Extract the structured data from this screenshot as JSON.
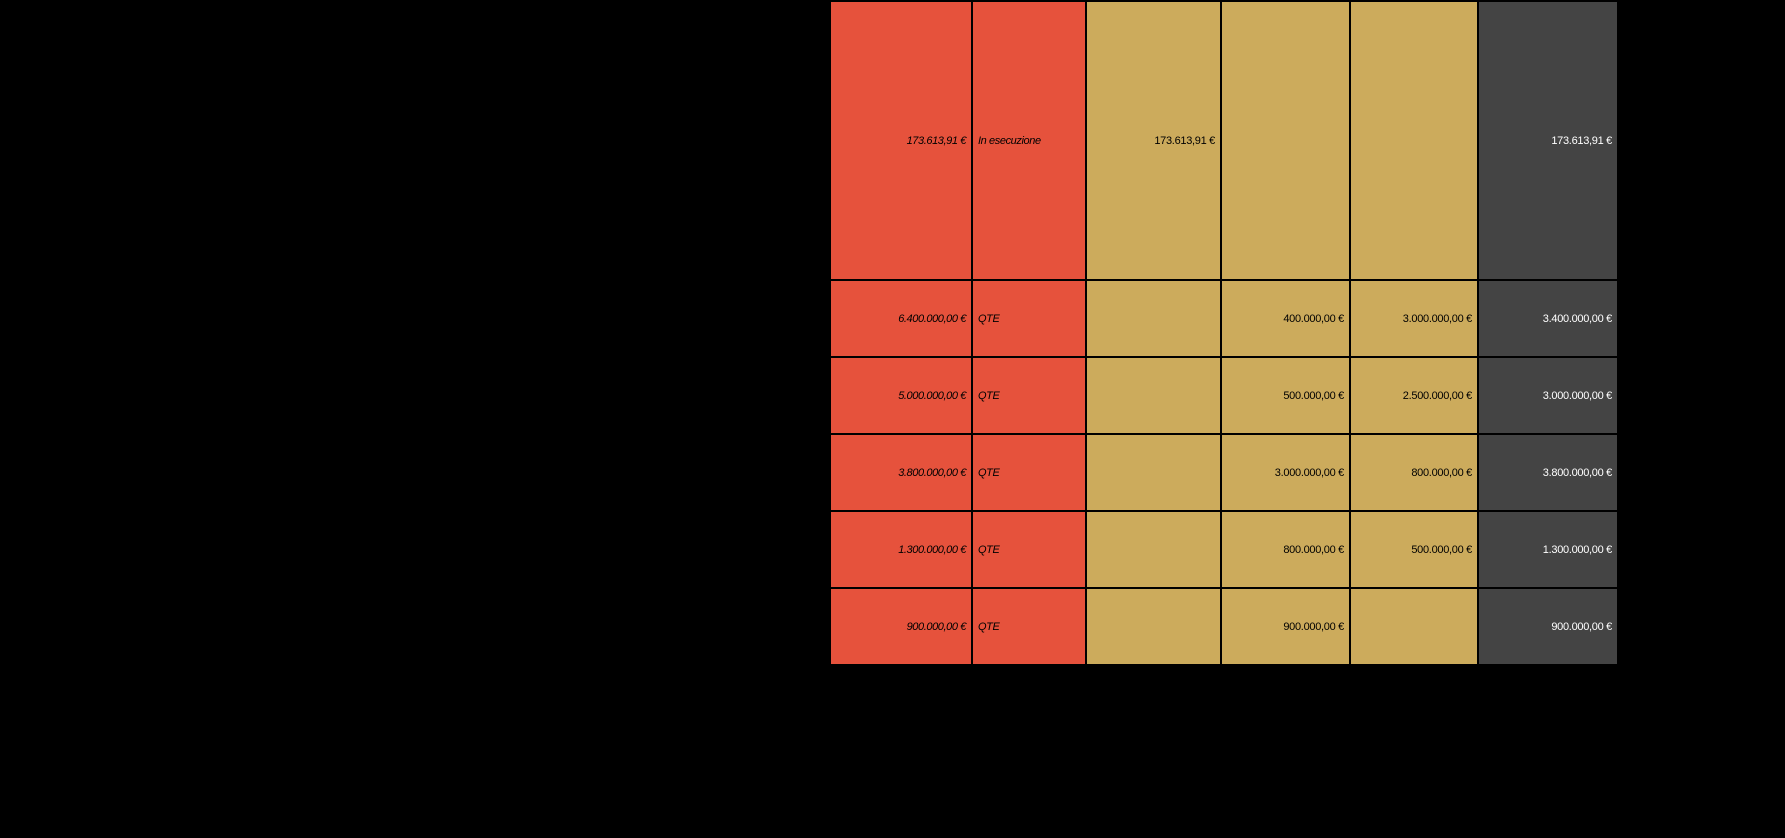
{
  "colors": {
    "amount_status_bg": "#e6523c",
    "yearly_bg": "#ccab5c",
    "total_bg": "#444444",
    "total_text": "#ffffff",
    "background": "#000000"
  },
  "rows": [
    {
      "amount": "173.613,91 €",
      "status": "In esecuzione",
      "y1": "173.613,91 €",
      "y2": "",
      "y3": "",
      "total": "173.613,91 €"
    },
    {
      "amount": "6.400.000,00 €",
      "status": "QTE",
      "y1": "",
      "y2": "400.000,00 €",
      "y3": "3.000.000,00 €",
      "total": "3.400.000,00 €"
    },
    {
      "amount": "5.000.000,00 €",
      "status": "QTE",
      "y1": "",
      "y2": "500.000,00 €",
      "y3": "2.500.000,00 €",
      "total": "3.000.000,00 €"
    },
    {
      "amount": "3.800.000,00 €",
      "status": "QTE",
      "y1": "",
      "y2": "3.000.000,00 €",
      "y3": "800.000,00 €",
      "total": "3.800.000,00 €"
    },
    {
      "amount": "1.300.000,00 €",
      "status": "QTE",
      "y1": "",
      "y2": "800.000,00 €",
      "y3": "500.000,00 €",
      "total": "1.300.000,00 €"
    },
    {
      "amount": "900.000,00 €",
      "status": "QTE",
      "y1": "",
      "y2": "900.000,00 €",
      "y3": "",
      "total": "900.000,00 €"
    }
  ]
}
